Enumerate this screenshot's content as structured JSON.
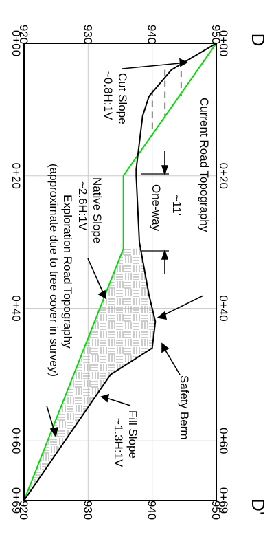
{
  "section_labels": {
    "start": "D",
    "end": "D'"
  },
  "stations": [
    "0+00",
    "0+20",
    "0+40",
    "0+60",
    "0+69"
  ],
  "elevations": [
    "920",
    "930",
    "940",
    "950"
  ],
  "annotations": {
    "current_road": "Current Road Topography",
    "cut_slope_1": "Cut Slope",
    "cut_slope_2": "~0.8H:1V",
    "width": "~11'",
    "one_way": "One-way",
    "native_slope_1": "Native Slope",
    "native_slope_2": "~2.6H:1V",
    "exploration_1": "Exploration Road Topography",
    "exploration_2": "(approximate due to tree cover in survey)",
    "safety_berm": "Safety Berm",
    "fill_slope_1": "Fill Slope",
    "fill_slope_2": "~1.3H:1V"
  },
  "colors": {
    "existing_ground": "#00dd00",
    "road": "#000000",
    "hatch": "#999999",
    "grid": "#cccccc"
  },
  "chart_data": {
    "type": "line",
    "x_unit": "station (ft)",
    "y_unit": "elevation (ft)",
    "xlim": [
      0,
      69
    ],
    "ylim": [
      920,
      950
    ],
    "grid": true,
    "series": [
      {
        "x": [
          0,
          20,
          31,
          69
        ],
        "y": [
          950,
          935.5,
          935.5,
          920
        ]
      },
      {
        "x": [
          0,
          4,
          8,
          11,
          19,
          20,
          30,
          38,
          42,
          46,
          50,
          69
        ],
        "y": [
          950,
          943,
          939.5,
          938.5,
          937.5,
          937.5,
          938,
          939.5,
          940.5,
          940,
          933.5,
          920
        ]
      }
    ]
  }
}
